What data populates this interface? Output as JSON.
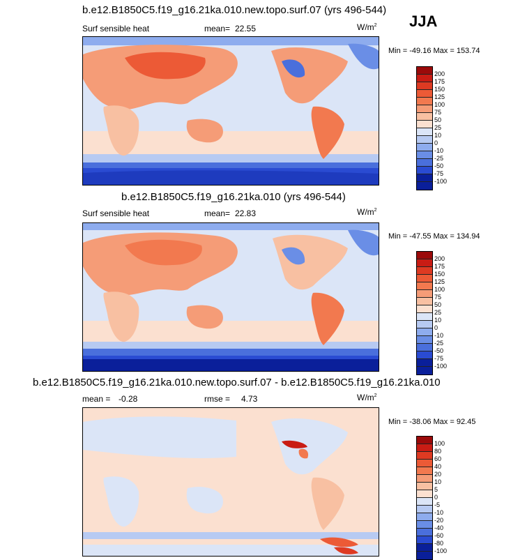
{
  "season": "JJA",
  "panels": [
    {
      "title": "b.e12.B1850C5.f19_g16.21ka.010.new.topo.surf.07 (yrs 496-544)",
      "variable": "Surf sensible heat",
      "mean_label": "mean=",
      "mean_value": "22.55",
      "units_base": "W/m",
      "units_exp": "2",
      "minmax": "Min = -49.16 Max = 153.74",
      "levels": [
        "200",
        "175",
        "150",
        "125",
        "100",
        "75",
        "50",
        "25",
        "10",
        "0",
        "-10",
        "-25",
        "-50",
        "-75",
        "-100"
      ]
    },
    {
      "title": "b.e12.B1850C5.f19_g16.21ka.010 (yrs 496-544)",
      "variable": "Surf sensible heat",
      "mean_label": "mean=",
      "mean_value": "22.83",
      "units_base": "W/m",
      "units_exp": "2",
      "minmax": "Min = -47.55 Max = 134.94",
      "levels": [
        "200",
        "175",
        "150",
        "125",
        "100",
        "75",
        "50",
        "25",
        "10",
        "0",
        "-10",
        "-25",
        "-50",
        "-75",
        "-100"
      ]
    },
    {
      "title": "b.e12.B1850C5.f19_g16.21ka.010.new.topo.surf.07 - b.e12.B1850C5.f19_g16.21ka.010",
      "mean_label": "mean =",
      "mean_value": "-0.28",
      "rmse_label": "rmse =",
      "rmse_value": "4.73",
      "units_base": "W/m",
      "units_exp": "2",
      "minmax": "Min = -38.06 Max = 92.45",
      "levels": [
        "100",
        "80",
        "60",
        "40",
        "20",
        "10",
        "5",
        "0",
        "-5",
        "-10",
        "-20",
        "-40",
        "-60",
        "-80",
        "-100"
      ]
    }
  ],
  "colors": {
    "palette_top_to_bottom": [
      "#9b0a0a",
      "#c91c14",
      "#de3a22",
      "#ec5a36",
      "#f2794f",
      "#f59c77",
      "#f8c0a2",
      "#fbe0d0",
      "#dbe5f7",
      "#b7caf2",
      "#8eacee",
      "#6a8ee6",
      "#4a6fdc",
      "#2a4bd2",
      "#0a1f9a"
    ]
  }
}
